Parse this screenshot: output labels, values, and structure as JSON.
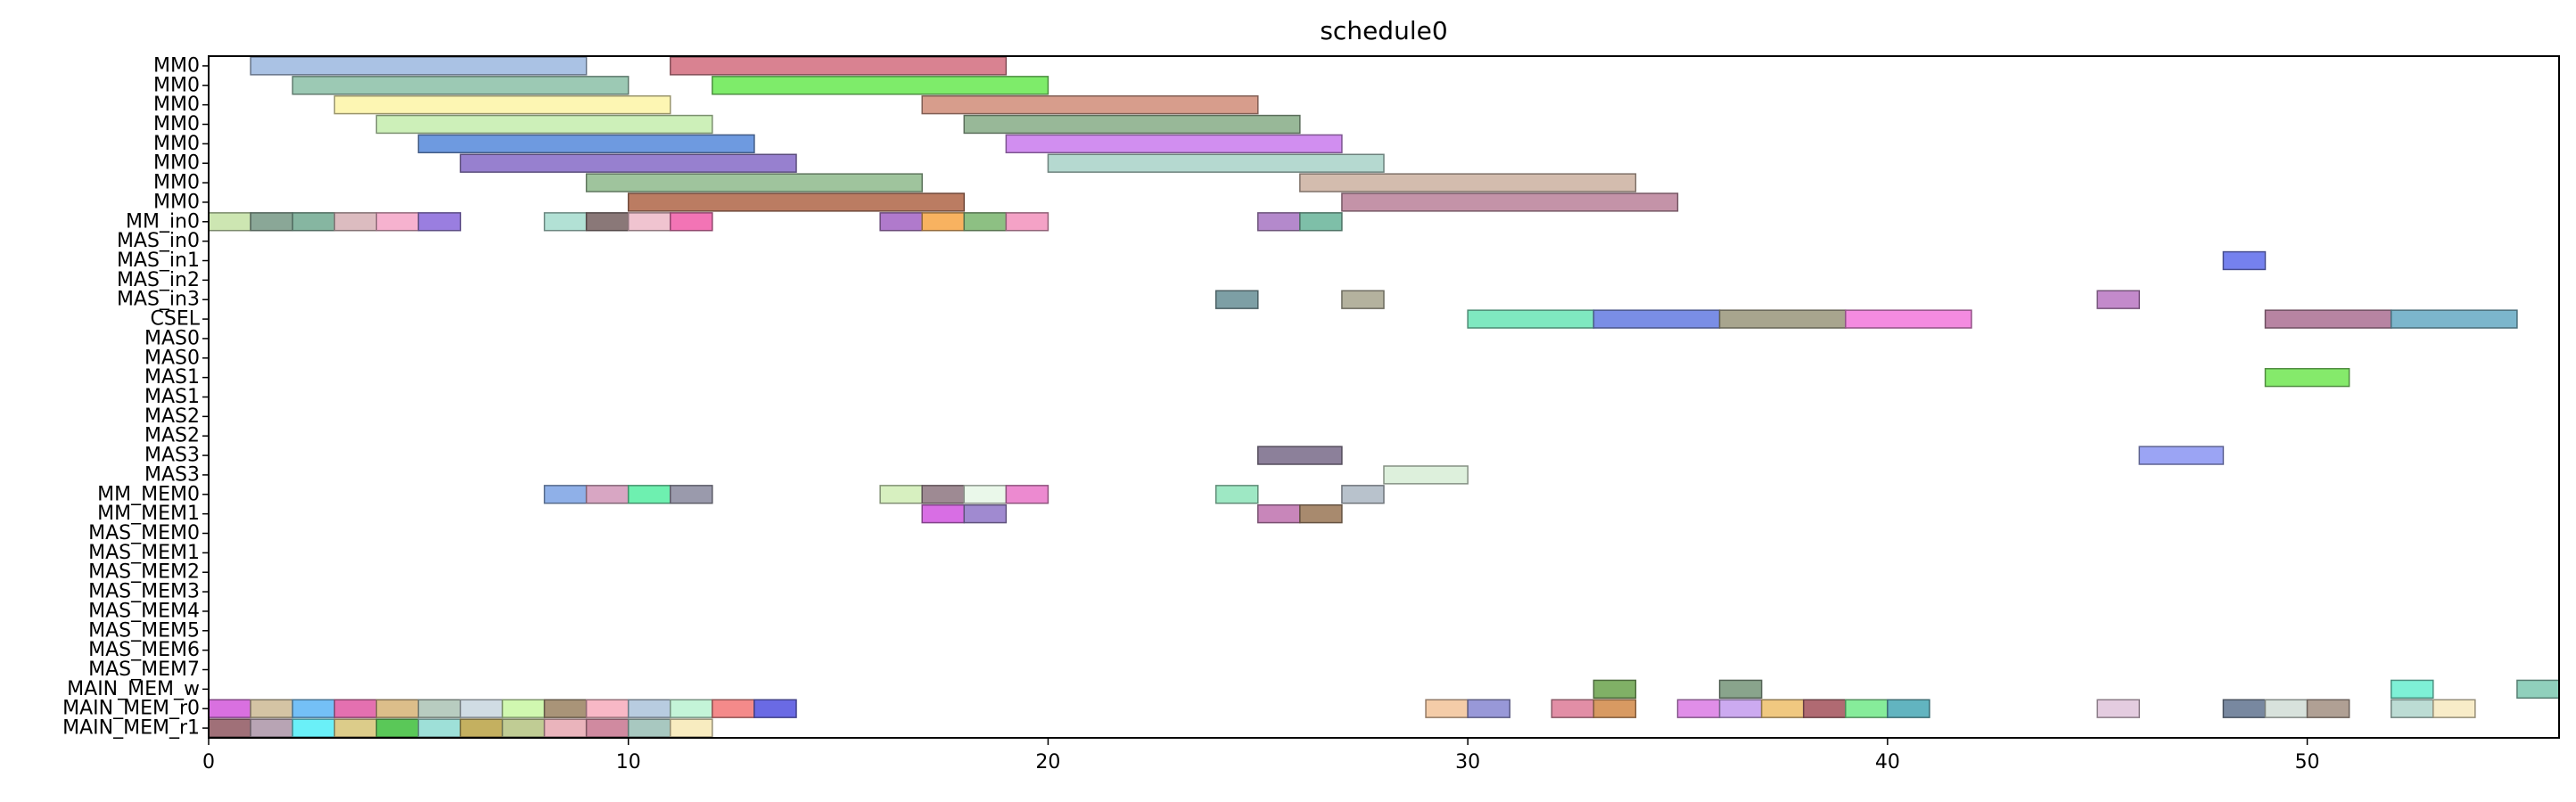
{
  "chart_data": {
    "type": "gantt",
    "title": "schedule0",
    "xlabel": "",
    "ylabel": "",
    "xlim": [
      0,
      56
    ],
    "grid": false,
    "x_ticks": [
      0,
      10,
      20,
      30,
      40,
      50
    ],
    "rows": [
      "MM0",
      "MM0",
      "MM0",
      "MM0",
      "MM0",
      "MM0",
      "MM0",
      "MM0",
      "MM_in0",
      "MAS_in0",
      "MAS_in1",
      "MAS_in2",
      "MAS_in3",
      "CSEL",
      "MAS0",
      "MAS0",
      "MAS1",
      "MAS1",
      "MAS2",
      "MAS2",
      "MAS3",
      "MAS3",
      "MM_MEM0",
      "MM_MEM1",
      "MAS_MEM0",
      "MAS_MEM1",
      "MAS_MEM2",
      "MAS_MEM3",
      "MAS_MEM4",
      "MAS_MEM5",
      "MAS_MEM6",
      "MAS_MEM7",
      "MAIN_MEM_w",
      "MAIN_MEM_r0",
      "MAIN_MEM_r1"
    ],
    "tasks": [
      {
        "row": 0,
        "start": 1,
        "end": 9,
        "color": "#aac2e4"
      },
      {
        "row": 0,
        "start": 11,
        "end": 19,
        "color": "#d98291"
      },
      {
        "row": 1,
        "start": 2,
        "end": 10,
        "color": "#9cc9b4"
      },
      {
        "row": 1,
        "start": 12,
        "end": 20,
        "color": "#7eec6a"
      },
      {
        "row": 2,
        "start": 3,
        "end": 11,
        "color": "#fdf6b3"
      },
      {
        "row": 2,
        "start": 17,
        "end": 25,
        "color": "#d79d8c"
      },
      {
        "row": 3,
        "start": 4,
        "end": 12,
        "color": "#cdf0b9"
      },
      {
        "row": 3,
        "start": 18,
        "end": 26,
        "color": "#98b898"
      },
      {
        "row": 4,
        "start": 5,
        "end": 13,
        "color": "#6e9ae0"
      },
      {
        "row": 4,
        "start": 19,
        "end": 27,
        "color": "#d18ef0"
      },
      {
        "row": 5,
        "start": 6,
        "end": 14,
        "color": "#9780cf"
      },
      {
        "row": 5,
        "start": 20,
        "end": 28,
        "color": "#b5d9d0"
      },
      {
        "row": 6,
        "start": 9,
        "end": 17,
        "color": "#9fc49d"
      },
      {
        "row": 6,
        "start": 26,
        "end": 34,
        "color": "#d3bcae"
      },
      {
        "row": 7,
        "start": 10,
        "end": 18,
        "color": "#bb7c62"
      },
      {
        "row": 7,
        "start": 27,
        "end": 35,
        "color": "#c493a8"
      },
      {
        "row": 8,
        "start": 0,
        "end": 1,
        "color": "#cde6b2"
      },
      {
        "row": 8,
        "start": 1,
        "end": 2,
        "color": "#8aa797"
      },
      {
        "row": 8,
        "start": 2,
        "end": 3,
        "color": "#86b6a1"
      },
      {
        "row": 8,
        "start": 3,
        "end": 4,
        "color": "#dcbcc0"
      },
      {
        "row": 8,
        "start": 4,
        "end": 5,
        "color": "#f6b2cf"
      },
      {
        "row": 8,
        "start": 5,
        "end": 6,
        "color": "#9a7ee0"
      },
      {
        "row": 8,
        "start": 8,
        "end": 9,
        "color": "#b2e1d5"
      },
      {
        "row": 8,
        "start": 9,
        "end": 10,
        "color": "#8a7878"
      },
      {
        "row": 8,
        "start": 10,
        "end": 11,
        "color": "#f0c4d0"
      },
      {
        "row": 8,
        "start": 11,
        "end": 12,
        "color": "#f374b5"
      },
      {
        "row": 8,
        "start": 16,
        "end": 17,
        "color": "#b07acc"
      },
      {
        "row": 8,
        "start": 17,
        "end": 18,
        "color": "#f8b260"
      },
      {
        "row": 8,
        "start": 18,
        "end": 19,
        "color": "#8dc083"
      },
      {
        "row": 8,
        "start": 19,
        "end": 20,
        "color": "#f4a2c6"
      },
      {
        "row": 8,
        "start": 25,
        "end": 26,
        "color": "#b489cc"
      },
      {
        "row": 8,
        "start": 26,
        "end": 27,
        "color": "#7ebfa8"
      },
      {
        "row": 10,
        "start": 48,
        "end": 49,
        "color": "#7581ee"
      },
      {
        "row": 12,
        "start": 24,
        "end": 25,
        "color": "#7d9fa5"
      },
      {
        "row": 12,
        "start": 27,
        "end": 28,
        "color": "#b4b29e"
      },
      {
        "row": 12,
        "start": 45,
        "end": 46,
        "color": "#c38acb"
      },
      {
        "row": 13,
        "start": 30,
        "end": 33,
        "color": "#7fe8c0"
      },
      {
        "row": 13,
        "start": 33,
        "end": 36,
        "color": "#7a8ee6"
      },
      {
        "row": 13,
        "start": 36,
        "end": 39,
        "color": "#a8a58e"
      },
      {
        "row": 13,
        "start": 39,
        "end": 42,
        "color": "#f48be0"
      },
      {
        "row": 13,
        "start": 49,
        "end": 52,
        "color": "#b784a2"
      },
      {
        "row": 13,
        "start": 52,
        "end": 55,
        "color": "#7cb6cc"
      },
      {
        "row": 16,
        "start": 49,
        "end": 51,
        "color": "#85ea6b"
      },
      {
        "row": 20,
        "start": 25,
        "end": 27,
        "color": "#8c809a"
      },
      {
        "row": 20,
        "start": 46,
        "end": 48,
        "color": "#9ba4f4"
      },
      {
        "row": 21,
        "start": 28,
        "end": 30,
        "color": "#ddf0dc"
      },
      {
        "row": 22,
        "start": 8,
        "end": 9,
        "color": "#8fb0e8"
      },
      {
        "row": 22,
        "start": 9,
        "end": 10,
        "color": "#d8a6c3"
      },
      {
        "row": 22,
        "start": 10,
        "end": 11,
        "color": "#6ef0b0"
      },
      {
        "row": 22,
        "start": 11,
        "end": 12,
        "color": "#9a9aac"
      },
      {
        "row": 22,
        "start": 16,
        "end": 17,
        "color": "#d7f0c0"
      },
      {
        "row": 22,
        "start": 17,
        "end": 18,
        "color": "#9e8a93"
      },
      {
        "row": 22,
        "start": 18,
        "end": 19,
        "color": "#eaf8ea"
      },
      {
        "row": 22,
        "start": 19,
        "end": 20,
        "color": "#ec8ad0"
      },
      {
        "row": 22,
        "start": 24,
        "end": 25,
        "color": "#9ee8c4"
      },
      {
        "row": 22,
        "start": 27,
        "end": 28,
        "color": "#b8c2cc"
      },
      {
        "row": 23,
        "start": 17,
        "end": 18,
        "color": "#d86ee4"
      },
      {
        "row": 23,
        "start": 18,
        "end": 19,
        "color": "#a08ad0"
      },
      {
        "row": 23,
        "start": 25,
        "end": 26,
        "color": "#c886ba"
      },
      {
        "row": 23,
        "start": 26,
        "end": 27,
        "color": "#a88a6e"
      },
      {
        "row": 32,
        "start": 33,
        "end": 34,
        "color": "#80b066"
      },
      {
        "row": 32,
        "start": 36,
        "end": 37,
        "color": "#89a48c"
      },
      {
        "row": 32,
        "start": 52,
        "end": 53,
        "color": "#7ef0d6"
      },
      {
        "row": 32,
        "start": 55,
        "end": 56,
        "color": "#90d0bc"
      },
      {
        "row": 33,
        "start": 0,
        "end": 1,
        "color": "#d970e0"
      },
      {
        "row": 33,
        "start": 1,
        "end": 2,
        "color": "#d4c4a4"
      },
      {
        "row": 33,
        "start": 2,
        "end": 3,
        "color": "#74c0f6"
      },
      {
        "row": 33,
        "start": 3,
        "end": 4,
        "color": "#e470b0"
      },
      {
        "row": 33,
        "start": 4,
        "end": 5,
        "color": "#dcbe8a"
      },
      {
        "row": 33,
        "start": 5,
        "end": 6,
        "color": "#b8ccc0"
      },
      {
        "row": 33,
        "start": 6,
        "end": 7,
        "color": "#d0dce4"
      },
      {
        "row": 33,
        "start": 7,
        "end": 8,
        "color": "#d0f8b0"
      },
      {
        "row": 33,
        "start": 8,
        "end": 9,
        "color": "#a99478"
      },
      {
        "row": 33,
        "start": 9,
        "end": 10,
        "color": "#f8b8c6"
      },
      {
        "row": 33,
        "start": 10,
        "end": 11,
        "color": "#b8cce0"
      },
      {
        "row": 33,
        "start": 11,
        "end": 12,
        "color": "#c4f4d8"
      },
      {
        "row": 33,
        "start": 12,
        "end": 13,
        "color": "#f48a8a"
      },
      {
        "row": 33,
        "start": 13,
        "end": 14,
        "color": "#6a6ae4"
      },
      {
        "row": 33,
        "start": 29,
        "end": 30,
        "color": "#f4cca8"
      },
      {
        "row": 33,
        "start": 30,
        "end": 31,
        "color": "#9898d8"
      },
      {
        "row": 33,
        "start": 32,
        "end": 33,
        "color": "#e28ea6"
      },
      {
        "row": 33,
        "start": 33,
        "end": 34,
        "color": "#d89a62"
      },
      {
        "row": 33,
        "start": 35,
        "end": 36,
        "color": "#e08ee8"
      },
      {
        "row": 33,
        "start": 36,
        "end": 37,
        "color": "#ccaaf0"
      },
      {
        "row": 33,
        "start": 37,
        "end": 38,
        "color": "#f0c880"
      },
      {
        "row": 33,
        "start": 38,
        "end": 39,
        "color": "#b06a72"
      },
      {
        "row": 33,
        "start": 39,
        "end": 40,
        "color": "#86ec9a"
      },
      {
        "row": 33,
        "start": 40,
        "end": 41,
        "color": "#62b4c0"
      },
      {
        "row": 33,
        "start": 45,
        "end": 46,
        "color": "#e4cce0"
      },
      {
        "row": 33,
        "start": 48,
        "end": 49,
        "color": "#7888a0"
      },
      {
        "row": 33,
        "start": 49,
        "end": 50,
        "color": "#d8e2dc"
      },
      {
        "row": 33,
        "start": 50,
        "end": 51,
        "color": "#b0a094"
      },
      {
        "row": 33,
        "start": 52,
        "end": 53,
        "color": "#bcdcd4"
      },
      {
        "row": 33,
        "start": 53,
        "end": 54,
        "color": "#f8ecc8"
      },
      {
        "row": 34,
        "start": 0,
        "end": 1,
        "color": "#a07078"
      },
      {
        "row": 34,
        "start": 1,
        "end": 2,
        "color": "#b8a4b4"
      },
      {
        "row": 34,
        "start": 2,
        "end": 3,
        "color": "#6af0f8"
      },
      {
        "row": 34,
        "start": 3,
        "end": 4,
        "color": "#dccc8a"
      },
      {
        "row": 34,
        "start": 4,
        "end": 5,
        "color": "#5ac858"
      },
      {
        "row": 34,
        "start": 5,
        "end": 6,
        "color": "#9ee0d8"
      },
      {
        "row": 34,
        "start": 6,
        "end": 7,
        "color": "#c4b060"
      },
      {
        "row": 34,
        "start": 7,
        "end": 8,
        "color": "#c0cc94"
      },
      {
        "row": 34,
        "start": 8,
        "end": 9,
        "color": "#eab4bc"
      },
      {
        "row": 34,
        "start": 9,
        "end": 10,
        "color": "#d08aa0"
      },
      {
        "row": 34,
        "start": 10,
        "end": 11,
        "color": "#a8c8c0"
      },
      {
        "row": 34,
        "start": 11,
        "end": 12,
        "color": "#f8ecc0"
      }
    ]
  }
}
